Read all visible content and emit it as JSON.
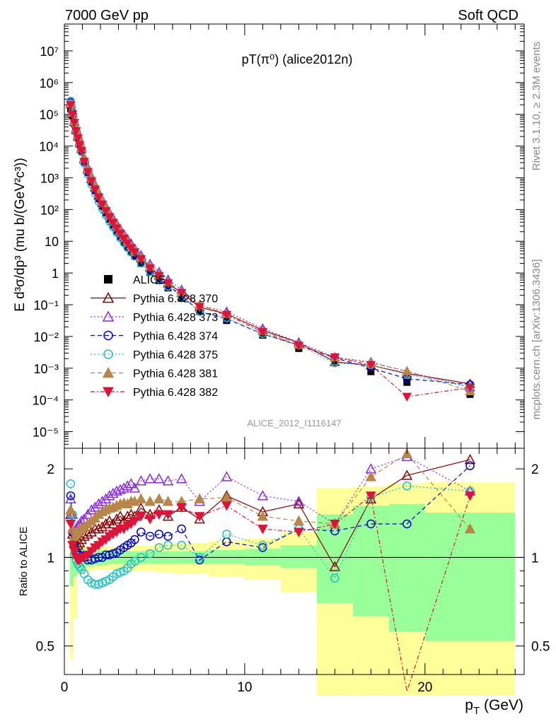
{
  "header": {
    "left": "7000 GeV pp",
    "right": "Soft QCD"
  },
  "side_labels": {
    "rivet": "Rivet 3.1.10, ≥ 2.3M events",
    "mcplots": "mcplots.cern.ch [arXiv:1306.3436]"
  },
  "chart_data": [
    {
      "type": "scatter",
      "title": "pT(π⁰) (alice2012n)",
      "watermark": "ALICE_2012_I1116147",
      "ylabel": "E d³σ/dp³ (mu b/(GeV²c³))",
      "xlabel": "",
      "xlim": [
        0,
        25.5
      ],
      "ylim": [
        3e-06,
        70000000.0
      ],
      "yscale": "log",
      "y_tick_labels": [
        "10⁻⁵",
        "10⁻⁴",
        "10⁻³",
        "10⁻²",
        "10⁻¹",
        "1",
        "10",
        "10²",
        "10³",
        "10⁴",
        "10⁵",
        "10⁶",
        "10⁷"
      ],
      "legend_position": "left-middle",
      "x": [
        0.35,
        0.45,
        0.55,
        0.65,
        0.75,
        0.85,
        0.95,
        1.1,
        1.3,
        1.5,
        1.7,
        1.9,
        2.1,
        2.3,
        2.5,
        2.7,
        2.9,
        3.1,
        3.3,
        3.5,
        3.7,
        3.9,
        4.25,
        4.75,
        5.25,
        5.75,
        6.5,
        7.5,
        9,
        11,
        13,
        15,
        17,
        19,
        22.5
      ],
      "series": [
        {
          "name": "ALICE",
          "color": "#000000",
          "marker": "square-filled",
          "dash": "",
          "values": [
            150000,
            90000,
            52000,
            30000,
            18000,
            11000,
            7000,
            3200,
            1500,
            750,
            400,
            220,
            128,
            78,
            49,
            32,
            21,
            14,
            9.6,
            6.7,
            4.7,
            3.4,
            2.0,
            1.05,
            0.58,
            0.34,
            0.16,
            0.062,
            0.032,
            0.011,
            0.0042,
            0.0017,
            0.00078,
            0.00036,
            0.00015
          ]
        },
        {
          "name": "Pythia 6.428 370",
          "color": "#8B0000",
          "marker": "triangle-up-open",
          "dash": ""
        },
        {
          "name": "Pythia 6.428 373",
          "color": "#8A2BE2",
          "marker": "triangle-up-open",
          "dash": "2,3"
        },
        {
          "name": "Pythia 6.428 374",
          "color": "#0000CD",
          "marker": "circle-open",
          "dash": "6,4"
        },
        {
          "name": "Pythia 6.428 375",
          "color": "#20C0C0",
          "marker": "circle-open",
          "dash": "2,3"
        },
        {
          "name": "Pythia 6.428 381",
          "color": "#B8864B",
          "marker": "triangle-up-filled",
          "dash": "6,4"
        },
        {
          "name": "Pythia 6.428 382",
          "color": "#DC143C",
          "marker": "triangle-down-filled",
          "dash": "6,3,2,3"
        }
      ]
    },
    {
      "type": "line",
      "ylabel": "Ratio to ALICE",
      "xlabel": "p_T (GeV)",
      "xlim": [
        0,
        25.5
      ],
      "ylim": [
        0.4,
        2.35
      ],
      "yscale": "log",
      "x_tick_labels": [
        "0",
        "10",
        "20"
      ],
      "y_tick_labels": [
        "0.5",
        "1",
        "2"
      ],
      "x": [
        0.35,
        0.45,
        0.55,
        0.65,
        0.75,
        0.85,
        0.95,
        1.1,
        1.3,
        1.5,
        1.7,
        1.9,
        2.1,
        2.3,
        2.5,
        2.7,
        2.9,
        3.1,
        3.3,
        3.5,
        3.7,
        3.9,
        4.25,
        4.75,
        5.25,
        5.75,
        6.5,
        7.5,
        9,
        11,
        13,
        15,
        17,
        19,
        22.5
      ],
      "uncertainty_bands": {
        "edges": [
          0.3,
          0.5,
          0.7,
          1.0,
          1.6,
          2.4,
          3.6,
          5.0,
          6.0,
          8.0,
          10.0,
          12.0,
          14.0,
          16.0,
          18.0,
          20.0,
          25.0
        ],
        "inner_lo": [
          0.8,
          0.86,
          0.9,
          0.93,
          0.94,
          0.95,
          0.95,
          0.95,
          0.95,
          0.95,
          0.94,
          0.92,
          0.7,
          0.63,
          0.56,
          0.52,
          0.67
        ],
        "inner_hi": [
          1.2,
          1.14,
          1.1,
          1.07,
          1.06,
          1.05,
          1.05,
          1.05,
          1.05,
          1.06,
          1.07,
          1.1,
          1.4,
          1.5,
          1.52,
          1.42,
          1.45
        ],
        "outer_lo": [
          0.45,
          0.62,
          0.88,
          0.9,
          0.91,
          0.91,
          0.9,
          0.89,
          0.88,
          0.86,
          0.84,
          0.76,
          0.34,
          0.34,
          0.34,
          0.34,
          0.34
        ],
        "outer_hi": [
          1.35,
          1.15,
          1.12,
          1.09,
          1.09,
          1.09,
          1.1,
          1.11,
          1.12,
          1.14,
          1.16,
          1.22,
          1.72,
          1.74,
          1.78,
          1.8,
          1.82
        ]
      },
      "series": [
        {
          "name": "Pythia 6.428 370",
          "values": [
            1.4,
            1.2,
            1.12,
            1.08,
            1.1,
            1.12,
            1.15,
            1.18,
            1.2,
            1.22,
            1.25,
            1.25,
            1.27,
            1.3,
            1.33,
            1.3,
            1.35,
            1.38,
            1.33,
            1.38,
            1.4,
            1.38,
            1.47,
            1.4,
            1.45,
            1.38,
            1.48,
            1.35,
            1.62,
            1.43,
            1.52,
            0.93,
            1.58,
            1.9,
            2.15
          ]
        },
        {
          "name": "Pythia 6.428 373",
          "values": [
            1.58,
            1.4,
            1.22,
            1.25,
            1.28,
            1.3,
            1.33,
            1.35,
            1.4,
            1.45,
            1.48,
            1.52,
            1.55,
            1.58,
            1.62,
            1.65,
            1.68,
            1.7,
            1.72,
            1.75,
            1.78,
            1.72,
            1.82,
            1.85,
            1.85,
            1.82,
            1.85,
            1.55,
            1.88,
            1.62,
            1.55,
            1.3,
            2.0,
            2.2,
            1.68
          ]
        },
        {
          "name": "Pythia 6.428 374",
          "values": [
            1.62,
            1.22,
            1.1,
            1.05,
            1.03,
            1.02,
            1.01,
            1.0,
            0.98,
            0.98,
            0.99,
            1.0,
            1.0,
            1.02,
            1.02,
            1.03,
            1.04,
            1.06,
            1.08,
            1.1,
            1.12,
            1.15,
            1.22,
            1.18,
            1.2,
            1.18,
            1.25,
            0.98,
            1.13,
            1.08,
            1.25,
            1.23,
            1.3,
            1.3,
            2.05
          ]
        },
        {
          "name": "Pythia 6.428 375",
          "values": [
            1.78,
            1.4,
            1.02,
            0.98,
            0.95,
            0.93,
            0.91,
            0.88,
            0.84,
            0.82,
            0.81,
            0.81,
            0.82,
            0.83,
            0.84,
            0.86,
            0.88,
            0.89,
            0.9,
            0.92,
            0.95,
            0.97,
            1.0,
            1.03,
            1.08,
            1.1,
            1.1,
            1.0,
            1.2,
            1.1,
            1.25,
            0.85,
            1.6,
            1.75,
            1.68
          ]
        },
        {
          "name": "Pythia 6.428 381",
          "values": [
            1.45,
            1.25,
            1.18,
            1.2,
            1.22,
            1.25,
            1.25,
            1.27,
            1.3,
            1.33,
            1.36,
            1.4,
            1.43,
            1.45,
            1.47,
            1.48,
            1.5,
            1.52,
            1.53,
            1.52,
            1.55,
            1.55,
            1.58,
            1.55,
            1.58,
            1.55,
            1.55,
            1.58,
            1.6,
            1.38,
            1.33,
            1.3,
            1.88,
            2.25,
            1.25
          ]
        },
        {
          "name": "Pythia 6.428 382",
          "values": [
            1.3,
            1.1,
            1.05,
            1.0,
            0.98,
            0.98,
            1.0,
            1.0,
            1.02,
            1.05,
            1.08,
            1.1,
            1.13,
            1.15,
            1.18,
            1.2,
            1.22,
            1.25,
            1.25,
            1.28,
            1.3,
            1.33,
            1.38,
            1.35,
            1.4,
            1.4,
            1.48,
            1.38,
            1.5,
            1.25,
            1.22,
            1.3,
            1.62,
            0.35,
            1.62
          ]
        }
      ]
    }
  ]
}
